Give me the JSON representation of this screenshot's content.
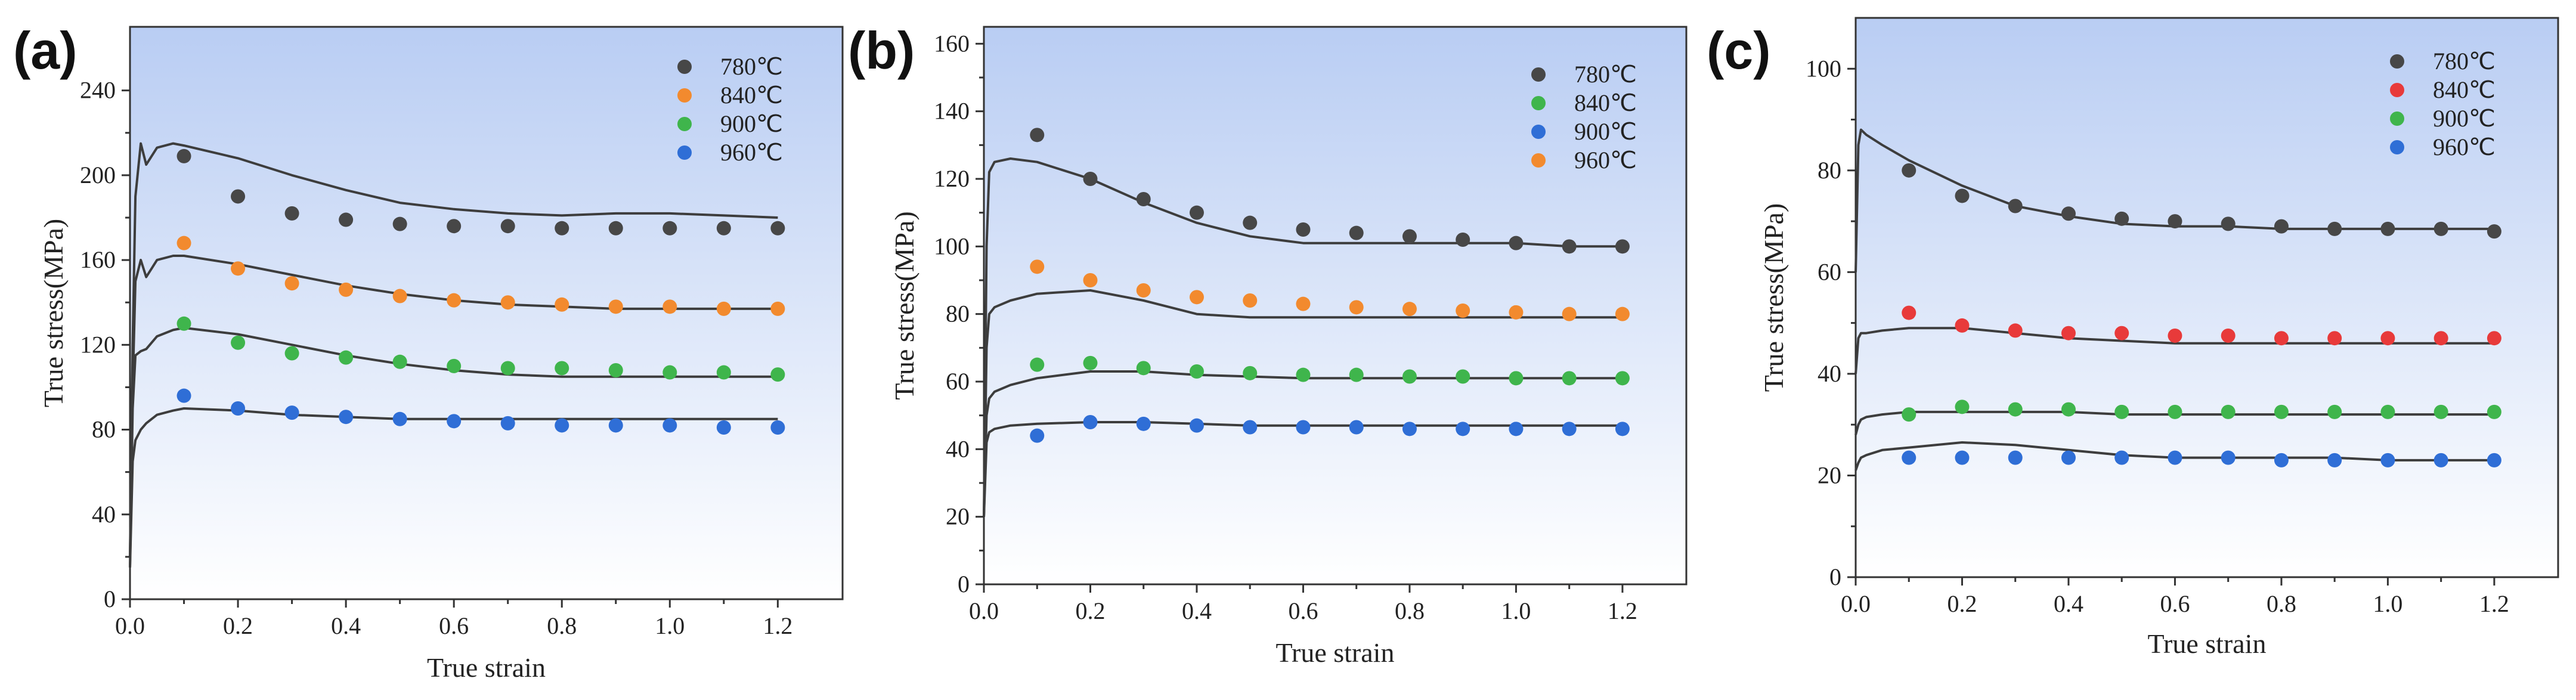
{
  "chart_data": [
    {
      "type": "scatter",
      "panel": "(a)",
      "xlabel": "True strain",
      "ylabel": "True stress(MPa)",
      "xlim": [
        0.0,
        1.32
      ],
      "ylim": [
        0,
        270
      ],
      "xticks": [
        "0.0",
        "0.2",
        "0.4",
        "0.6",
        "0.8",
        "1.0",
        "1.2"
      ],
      "yticks": [
        "0",
        "40",
        "80",
        "120",
        "160",
        "200",
        "240"
      ],
      "legend_position": "top-right",
      "x": [
        0.1,
        0.2,
        0.3,
        0.4,
        0.5,
        0.6,
        0.7,
        0.8,
        0.9,
        1.0,
        1.1,
        1.2
      ],
      "series": [
        {
          "name": "780℃",
          "color": "#474747",
          "values": [
            209,
            190,
            182,
            179,
            177,
            176,
            176,
            175,
            175,
            175,
            175,
            175
          ]
        },
        {
          "name": "840℃",
          "color": "#f28a2e",
          "values": [
            168,
            156,
            149,
            146,
            143,
            141,
            140,
            139,
            138,
            138,
            137,
            137
          ]
        },
        {
          "name": "900℃",
          "color": "#3fb54c",
          "values": [
            130,
            121,
            116,
            114,
            112,
            110,
            109,
            109,
            108,
            107,
            107,
            106
          ]
        },
        {
          "name": "960℃",
          "color": "#2f6ed6",
          "values": [
            96,
            90,
            88,
            86,
            85,
            84,
            83,
            82,
            82,
            82,
            81,
            81
          ]
        }
      ],
      "model_curves": [
        {
          "name": "780℃",
          "x": [
            0.0,
            0.005,
            0.01,
            0.02,
            0.03,
            0.05,
            0.08,
            0.1,
            0.2,
            0.3,
            0.4,
            0.5,
            0.6,
            0.7,
            0.8,
            0.9,
            1.0,
            1.1,
            1.2
          ],
          "y": [
            20,
            120,
            190,
            215,
            205,
            213,
            215,
            214,
            208,
            200,
            193,
            187,
            184,
            182,
            181,
            182,
            182,
            181,
            180
          ]
        },
        {
          "name": "840℃",
          "x": [
            0.0,
            0.005,
            0.01,
            0.02,
            0.03,
            0.05,
            0.08,
            0.1,
            0.2,
            0.3,
            0.4,
            0.5,
            0.6,
            0.7,
            0.8,
            0.9,
            1.0,
            1.1,
            1.2
          ],
          "y": [
            20,
            100,
            150,
            160,
            152,
            160,
            162,
            162,
            158,
            153,
            148,
            144,
            141,
            139,
            138,
            137,
            137,
            137,
            137
          ]
        },
        {
          "name": "900℃",
          "x": [
            0.0,
            0.005,
            0.01,
            0.02,
            0.03,
            0.05,
            0.08,
            0.1,
            0.2,
            0.3,
            0.4,
            0.5,
            0.6,
            0.7,
            0.8,
            0.9,
            1.0,
            1.1,
            1.2
          ],
          "y": [
            15,
            90,
            115,
            117,
            118,
            124,
            127,
            128,
            125,
            120,
            115,
            111,
            108,
            106,
            105,
            105,
            105,
            105,
            105
          ]
        },
        {
          "name": "960℃",
          "x": [
            0.0,
            0.005,
            0.01,
            0.02,
            0.03,
            0.05,
            0.08,
            0.1,
            0.2,
            0.3,
            0.4,
            0.5,
            0.6,
            0.7,
            0.8,
            0.9,
            1.0,
            1.1,
            1.2
          ],
          "y": [
            15,
            65,
            75,
            80,
            83,
            87,
            89,
            90,
            89,
            87,
            86,
            85,
            85,
            85,
            85,
            85,
            85,
            85,
            85
          ]
        }
      ]
    },
    {
      "type": "scatter",
      "panel": "(b)",
      "xlabel": "True strain",
      "ylabel": "True stress(MPa)",
      "xlim": [
        0.0,
        1.32
      ],
      "ylim": [
        0,
        165
      ],
      "xticks": [
        "0.0",
        "0.2",
        "0.4",
        "0.6",
        "0.8",
        "1.0",
        "1.2"
      ],
      "yticks": [
        "0",
        "20",
        "40",
        "60",
        "80",
        "100",
        "120",
        "140",
        "160"
      ],
      "legend_position": "top-right",
      "x": [
        0.1,
        0.2,
        0.3,
        0.4,
        0.5,
        0.6,
        0.7,
        0.8,
        0.9,
        1.0,
        1.1,
        1.2
      ],
      "series": [
        {
          "name": "780℃",
          "color": "#474747",
          "values": [
            133,
            120,
            114,
            110,
            107,
            105,
            104,
            103,
            102,
            101,
            100,
            100
          ]
        },
        {
          "name": "840℃",
          "color": "#3fb54c",
          "values": [
            65,
            65.5,
            64,
            63,
            62.5,
            62,
            62,
            61.5,
            61.5,
            61,
            61,
            61
          ]
        },
        {
          "name": "900℃",
          "color": "#2f6ed6",
          "values": [
            44,
            48,
            47.5,
            47,
            46.5,
            46.5,
            46.5,
            46,
            46,
            46,
            46,
            46
          ]
        },
        {
          "name": "960℃",
          "color": "#f28a2e",
          "values": [
            94,
            90,
            87,
            85,
            84,
            83,
            82,
            81.5,
            81,
            80.5,
            80,
            80
          ]
        }
      ],
      "model_curves": [
        {
          "name": "780℃",
          "x": [
            0.0,
            0.005,
            0.01,
            0.02,
            0.05,
            0.1,
            0.2,
            0.3,
            0.4,
            0.5,
            0.6,
            0.7,
            0.8,
            0.9,
            1.0,
            1.1,
            1.2
          ],
          "y": [
            20,
            100,
            122,
            125,
            126,
            125,
            120,
            113,
            107,
            103,
            101,
            101,
            101,
            101,
            101,
            100,
            100
          ]
        },
        {
          "name": "960℃",
          "x": [
            0.0,
            0.005,
            0.01,
            0.02,
            0.05,
            0.1,
            0.2,
            0.3,
            0.4,
            0.5,
            0.6,
            0.7,
            0.8,
            0.9,
            1.0,
            1.1,
            1.2
          ],
          "y": [
            20,
            70,
            80,
            82,
            84,
            86,
            87,
            84,
            80,
            79,
            79,
            79,
            79,
            79,
            79,
            79,
            79
          ]
        },
        {
          "name": "840℃",
          "x": [
            0.0,
            0.005,
            0.01,
            0.02,
            0.05,
            0.1,
            0.2,
            0.3,
            0.4,
            0.5,
            0.6,
            0.7,
            0.8,
            0.9,
            1.0,
            1.1,
            1.2
          ],
          "y": [
            20,
            50,
            55,
            57,
            59,
            61,
            63,
            63,
            62,
            61.5,
            61,
            61,
            61,
            61,
            61,
            61,
            61
          ]
        },
        {
          "name": "900℃",
          "x": [
            0.0,
            0.005,
            0.01,
            0.02,
            0.05,
            0.1,
            0.2,
            0.3,
            0.4,
            0.5,
            0.6,
            0.7,
            0.8,
            0.9,
            1.0,
            1.1,
            1.2
          ],
          "y": [
            20,
            42,
            45,
            46,
            47,
            47.5,
            48,
            48,
            47.5,
            47,
            47,
            47,
            47,
            47,
            47,
            47,
            47
          ]
        }
      ]
    },
    {
      "type": "scatter",
      "panel": "(c)",
      "xlabel": "True strain",
      "ylabel": "True stress(MPa)",
      "xlim": [
        0.0,
        1.32
      ],
      "ylim": [
        0,
        110
      ],
      "xticks": [
        "0.0",
        "0.2",
        "0.4",
        "0.6",
        "0.8",
        "1.0",
        "1.2"
      ],
      "yticks": [
        "0",
        "20",
        "40",
        "60",
        "80",
        "100"
      ],
      "legend_position": "top-right",
      "x": [
        0.1,
        0.2,
        0.3,
        0.4,
        0.5,
        0.6,
        0.7,
        0.8,
        0.9,
        1.0,
        1.1,
        1.2
      ],
      "series": [
        {
          "name": "780℃",
          "color": "#474747",
          "values": [
            80,
            75,
            73,
            71.5,
            70.5,
            70,
            69.5,
            69,
            68.5,
            68.5,
            68.5,
            68
          ]
        },
        {
          "name": "840℃",
          "color": "#e83a3a",
          "values": [
            52,
            49.5,
            48.5,
            48,
            48,
            47.5,
            47.5,
            47,
            47,
            47,
            47,
            47
          ]
        },
        {
          "name": "900℃",
          "color": "#3fb54c",
          "values": [
            32,
            33.5,
            33,
            33,
            32.5,
            32.5,
            32.5,
            32.5,
            32.5,
            32.5,
            32.5,
            32.5
          ]
        },
        {
          "name": "960℃",
          "color": "#2f6ed6",
          "values": [
            23.5,
            23.5,
            23.5,
            23.5,
            23.5,
            23.5,
            23.5,
            23,
            23,
            23,
            23,
            23
          ]
        }
      ],
      "model_curves": [
        {
          "name": "780℃",
          "x": [
            0.0,
            0.005,
            0.01,
            0.02,
            0.05,
            0.1,
            0.2,
            0.3,
            0.4,
            0.5,
            0.6,
            0.7,
            0.8,
            0.9,
            1.0,
            1.1,
            1.2
          ],
          "y": [
            60,
            85,
            88,
            87,
            85,
            82,
            77,
            73,
            71,
            69.5,
            69,
            69,
            68.5,
            68.5,
            68.5,
            68.5,
            68.5
          ]
        },
        {
          "name": "840℃",
          "x": [
            0.0,
            0.005,
            0.01,
            0.02,
            0.05,
            0.1,
            0.2,
            0.3,
            0.4,
            0.5,
            0.6,
            0.7,
            0.8,
            0.9,
            1.0,
            1.1,
            1.2
          ],
          "y": [
            40,
            47,
            48,
            48,
            48.5,
            49,
            49,
            48,
            47,
            46.5,
            46,
            46,
            46,
            46,
            46,
            46,
            46
          ]
        },
        {
          "name": "900℃",
          "x": [
            0.0,
            0.005,
            0.01,
            0.02,
            0.05,
            0.1,
            0.2,
            0.3,
            0.4,
            0.5,
            0.6,
            0.7,
            0.8,
            0.9,
            1.0,
            1.1,
            1.2
          ],
          "y": [
            28,
            30,
            31,
            31.5,
            32,
            32.5,
            32.5,
            32.5,
            32.5,
            32,
            32,
            32,
            32,
            32,
            32,
            32,
            32
          ]
        },
        {
          "name": "960℃",
          "x": [
            0.0,
            0.005,
            0.01,
            0.02,
            0.05,
            0.1,
            0.2,
            0.3,
            0.4,
            0.5,
            0.6,
            0.7,
            0.8,
            0.9,
            1.0,
            1.1,
            1.2
          ],
          "y": [
            21,
            22.5,
            23.5,
            24,
            25,
            25.5,
            26.5,
            26,
            25,
            24,
            23.5,
            23.5,
            23.5,
            23.5,
            23,
            23,
            23
          ]
        }
      ]
    }
  ]
}
